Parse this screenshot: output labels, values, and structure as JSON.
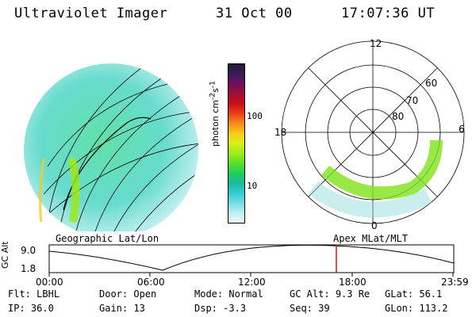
{
  "header": {
    "instrument": "Ultraviolet Imager",
    "date": "31 Oct 00",
    "time": "17:07:36 UT"
  },
  "colorbar": {
    "label": "photon cm^-2 s^-1",
    "label_html": "photon cm<sup>-2</sup>s<sup>-1</sup>",
    "ticks": [
      "100",
      "10"
    ],
    "colors": [
      "#222034",
      "#3b1a5a",
      "#701060",
      "#a01038",
      "#c80f1a",
      "#e6421a",
      "#f88b1a",
      "#f8cc1a",
      "#d8f01a",
      "#9ced1a",
      "#5be02a",
      "#1fcf56",
      "#1db8a0",
      "#34cbd0",
      "#75dde4",
      "#bfeef0",
      "#ebf9fa"
    ]
  },
  "left_panel": {
    "label": "Geographic Lat/Lon"
  },
  "right_panel": {
    "label": "Apex MLat/MLT",
    "mlt_labels": {
      "top": "12",
      "left": "18",
      "right": "6",
      "bottom": "0"
    },
    "lat_labels": [
      "60",
      "70",
      "80"
    ]
  },
  "altitude_plot": {
    "ylabel": "GC Alt",
    "yticks": [
      "9.0",
      "1.8"
    ],
    "xticks": [
      "00:00",
      "06:00",
      "12:00",
      "18:00",
      "23:59"
    ]
  },
  "footer": [
    [
      {
        "k": "Flt:",
        "v": "LBHL"
      },
      {
        "k": "Door:",
        "v": "Open"
      },
      {
        "k": "Mode:",
        "v": "Normal"
      },
      {
        "k": "GC Alt:",
        "v": "9.3 Re"
      },
      {
        "k": "GLat:",
        "v": "56.1"
      }
    ],
    [
      {
        "k": "IP:",
        "v": "36.0"
      },
      {
        "k": "Gain:",
        "v": "13"
      },
      {
        "k": "Dsp:",
        "v": "-3.3"
      },
      {
        "k": "Seq:",
        "v": "39"
      },
      {
        "k": "GLon:",
        "v": "113.2"
      }
    ]
  ]
}
